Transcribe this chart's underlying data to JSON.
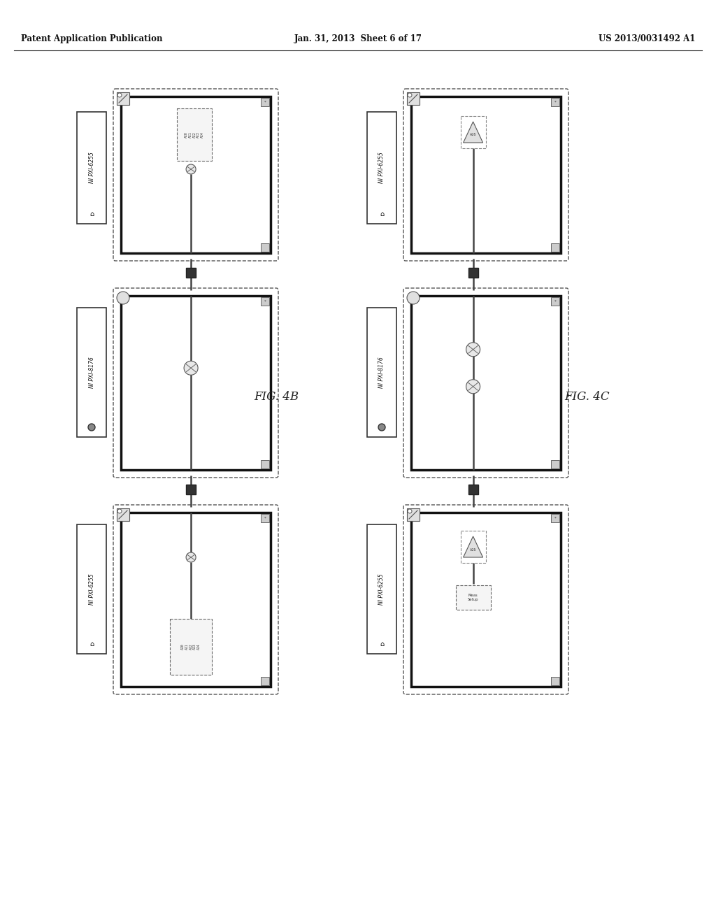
{
  "title_left": "Patent Application Publication",
  "title_center": "Jan. 31, 2013  Sheet 6 of 17",
  "title_right": "US 2013/0031492 A1",
  "fig4b_label": "FIG. 4B",
  "fig4c_label": "FIG. 4C",
  "label_6255": "NI PXI-6255",
  "label_8176": "NI PXI-8176",
  "bg_color": "#ffffff"
}
